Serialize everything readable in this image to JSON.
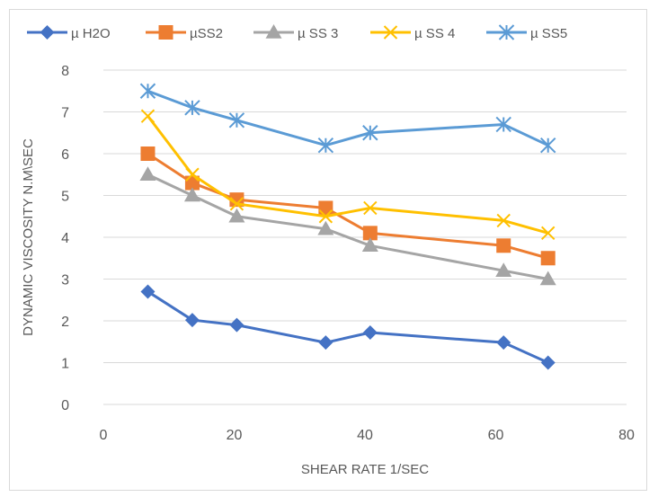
{
  "chart_data": {
    "type": "line",
    "xlabel": "SHEAR RATE 1/SEC",
    "ylabel": "DYNAMIC VISCOSITY N.M\\SEC",
    "xlim": [
      0,
      80
    ],
    "ylim": [
      0,
      8
    ],
    "x_ticks": [
      "0",
      "20",
      "40",
      "60",
      "80"
    ],
    "y_ticks": [
      "0",
      "1",
      "2",
      "3",
      "4",
      "5",
      "6",
      "7",
      "8"
    ],
    "grid": "horizontal",
    "legend_position": "top",
    "x": [
      6.8,
      13.6,
      20.4,
      34,
      40.8,
      61.2,
      68
    ],
    "series": [
      {
        "name": "µ H2O",
        "color": "#4472c4",
        "marker": "diamond",
        "values": [
          2.7,
          2.02,
          1.9,
          1.48,
          1.72,
          1.48,
          1.0
        ]
      },
      {
        "name": "µSS2",
        "color": "#ed7d31",
        "marker": "square",
        "values": [
          6.0,
          5.3,
          4.9,
          4.7,
          4.1,
          3.8,
          3.5
        ]
      },
      {
        "name": "µ SS 3",
        "color": "#a5a5a5",
        "marker": "triangle",
        "values": [
          5.5,
          5.0,
          4.5,
          4.2,
          3.8,
          3.2,
          3.0
        ]
      },
      {
        "name": "µ SS 4",
        "color": "#ffc000",
        "marker": "x",
        "values": [
          6.9,
          5.5,
          4.8,
          4.5,
          4.7,
          4.4,
          4.1
        ]
      },
      {
        "name": "µ SS5",
        "color": "#5b9bd5",
        "marker": "asterisk",
        "values": [
          7.5,
          7.1,
          6.8,
          6.2,
          6.5,
          6.7,
          6.2
        ]
      }
    ]
  }
}
